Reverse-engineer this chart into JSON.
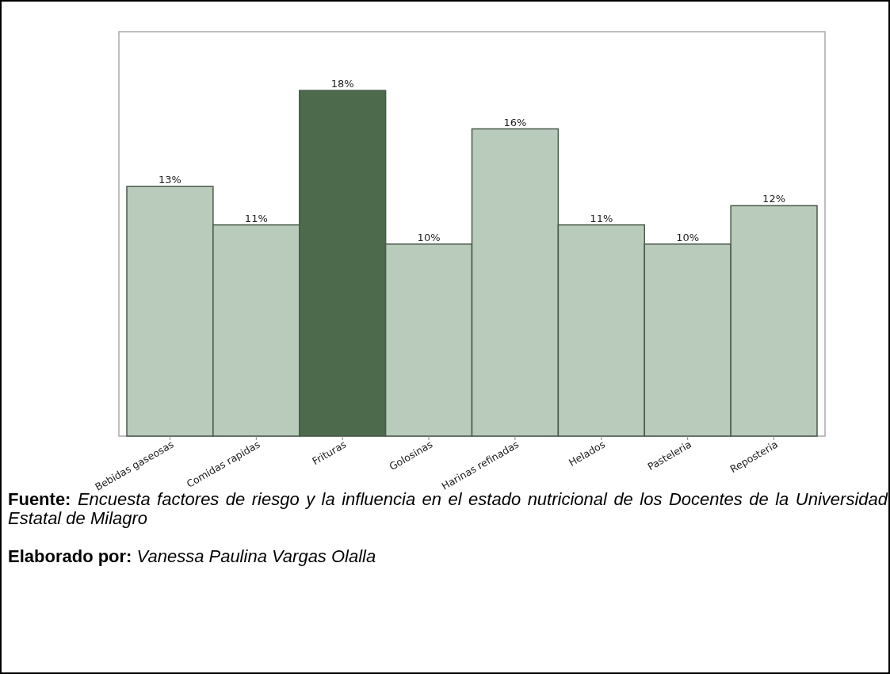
{
  "chart_data": {
    "type": "bar",
    "categories": [
      "Bebidas gaseosas",
      "Comidas rapidas",
      "Frituras",
      "Golosinas",
      "Harinas refinadas",
      "Helados",
      "Pasteleria",
      "Reposteria"
    ],
    "values": [
      13,
      11,
      18,
      10,
      16,
      11,
      10,
      12
    ],
    "value_labels": [
      "13%",
      "11%",
      "18%",
      "10%",
      "16%",
      "11%",
      "10%",
      "12%"
    ],
    "colors": [
      "#b9cbbb",
      "#b9cbbb",
      "#4d6a4d",
      "#b9cbbb",
      "#b9cbbb",
      "#b9cbbb",
      "#b9cbbb",
      "#b9cbbb"
    ],
    "annotations": [
      "Fuente: Encuesta factores de riesgo y la influencia en el estado nutricional de los Docentes de la Universidad Estatal de Milagro",
      "Elaborado por: Vanessa Paulina Vargas Olalla"
    ]
  }
}
